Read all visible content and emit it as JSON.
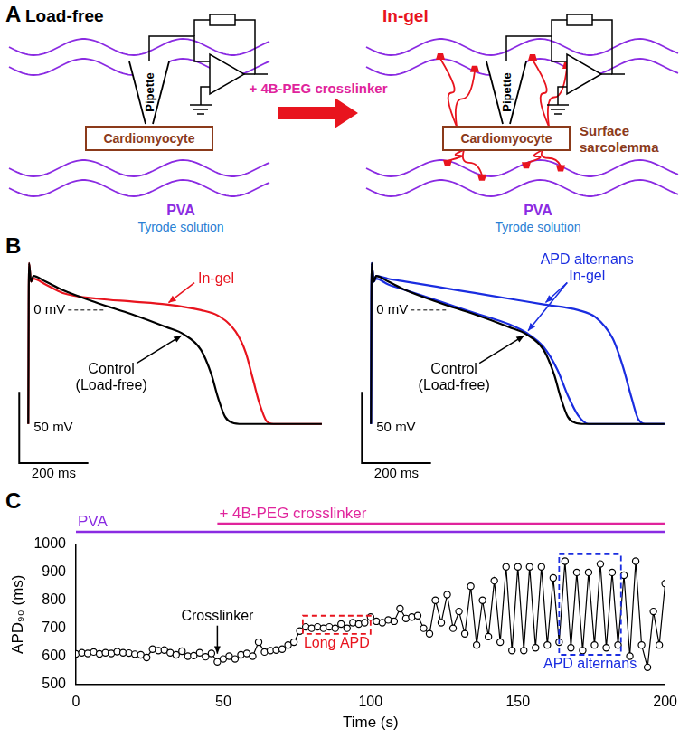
{
  "panel_labels": [
    "A",
    "B",
    "C"
  ],
  "diagram": {
    "left": {
      "title": "Load-free",
      "pipette": "Pipette",
      "cell": "Cardiomyocyte",
      "gel": "PVA",
      "solution": "Tyrode solution"
    },
    "arrow": "+ 4B-PEG crosslinker",
    "right": {
      "title": "In-gel",
      "pipette": "Pipette",
      "cell": "Cardiomyocyte",
      "gel": "PVA",
      "solution": "Tyrode solution",
      "membrane": "Surface sarcolemma"
    }
  },
  "chart_data": [
    {
      "type": "line",
      "tick_labels": false,
      "grid": false,
      "xlim": [
        -40,
        900
      ],
      "ylim": [
        -110,
        45
      ],
      "reference_lines": [
        {
          "y": 0,
          "label": "0 mV"
        }
      ],
      "scale_bars": {
        "x": 200,
        "x_label": "200 ms",
        "y": 50,
        "y_label": "50 mV"
      },
      "series": [
        {
          "name": "Control (Load-free)",
          "color": "#000000",
          "x": [
            0,
            2,
            8,
            15,
            50,
            100,
            200,
            300,
            400,
            450,
            500,
            530,
            550,
            570,
            590,
            620,
            850
          ],
          "values": [
            -80,
            33,
            20,
            24,
            20,
            14,
            5,
            -3,
            -12,
            -17,
            -28,
            -45,
            -62,
            -75,
            -79,
            -80,
            -80
          ]
        },
        {
          "name": "In-gel",
          "color": "#e8141e",
          "x": [
            0,
            2,
            8,
            15,
            50,
            100,
            200,
            300,
            400,
            500,
            550,
            600,
            630,
            650,
            670,
            690,
            710,
            850
          ],
          "values": [
            -80,
            33,
            20,
            22,
            18,
            12,
            8,
            6,
            4,
            0,
            -4,
            -15,
            -30,
            -48,
            -66,
            -78,
            -80,
            -80
          ]
        }
      ]
    },
    {
      "type": "line",
      "tick_labels": false,
      "grid": false,
      "xlim": [
        -40,
        900
      ],
      "ylim": [
        -110,
        45
      ],
      "reference_lines": [
        {
          "y": 0,
          "label": "0 mV"
        }
      ],
      "scale_bars": {
        "x": 200,
        "x_label": "200 ms",
        "y": 50,
        "y_label": "50 mV"
      },
      "annotations": [
        {
          "text": "APD alternans"
        }
      ],
      "series": [
        {
          "name": "Control (Load-free)",
          "color": "#000000",
          "x": [
            0,
            2,
            8,
            15,
            50,
            100,
            200,
            300,
            400,
            450,
            500,
            530,
            550,
            570,
            590,
            620,
            850
          ],
          "values": [
            -80,
            33,
            20,
            24,
            20,
            14,
            5,
            -3,
            -12,
            -17,
            -28,
            -45,
            -62,
            -75,
            -79,
            -80,
            -80
          ]
        },
        {
          "name": "In-gel",
          "color": "#1a2de0",
          "x": [
            0,
            2,
            8,
            15,
            50,
            100,
            200,
            300,
            400,
            450,
            500,
            540,
            570,
            600,
            630,
            850
          ],
          "values": [
            -80,
            33,
            20,
            22,
            18,
            14,
            6,
            -2,
            -10,
            -16,
            -26,
            -42,
            -60,
            -74,
            -80,
            -80
          ]
        },
        {
          "name": "In-gel",
          "color": "#1a2de0",
          "x": [
            0,
            2,
            8,
            15,
            50,
            100,
            200,
            300,
            400,
            500,
            600,
            650,
            700,
            730,
            755,
            775,
            800,
            850
          ],
          "values": [
            -80,
            33,
            20,
            24,
            22,
            20,
            16,
            12,
            8,
            4,
            0,
            -5,
            -20,
            -40,
            -62,
            -77,
            -80,
            -80
          ]
        }
      ]
    },
    {
      "type": "line",
      "marker": "circle",
      "color": "#000000",
      "grid": false,
      "x_label": "Time (s)",
      "y_label": "APD₉₀ (ms)",
      "xlim": [
        0,
        200
      ],
      "xticks": [
        0,
        50,
        100,
        150,
        200
      ],
      "ylim": [
        500,
        1000
      ],
      "yticks": [
        500,
        600,
        700,
        800,
        900,
        1000
      ],
      "periods": [
        {
          "text": "PVA",
          "x": [
            0,
            200
          ],
          "color": "#8a2be2"
        },
        {
          "text": "+ 4B-PEG crosslinker",
          "x": [
            48,
            200
          ],
          "color": "#e0249c"
        }
      ],
      "annotations": [
        {
          "text": "Crosslinker",
          "x": 48,
          "y": 580
        }
      ],
      "boxes": [
        {
          "text": "Long APD",
          "x": [
            77,
            100
          ],
          "y": [
            680,
            745
          ],
          "color": "#e8141e"
        },
        {
          "text": "APD alternans",
          "x": [
            164,
            185
          ],
          "y": [
            605,
            965
          ],
          "color": "#1a2de0"
        }
      ],
      "x": [
        0,
        2,
        4,
        6,
        8,
        10,
        12,
        14,
        16,
        18,
        20,
        22,
        24,
        26,
        28,
        30,
        32,
        34,
        36,
        38,
        40,
        42,
        44,
        46,
        48,
        50,
        52,
        54,
        56,
        58,
        60,
        62,
        64,
        66,
        68,
        70,
        72,
        74,
        76,
        78,
        80,
        82,
        84,
        86,
        88,
        90,
        92,
        94,
        96,
        98,
        100,
        102,
        104,
        106,
        108,
        110,
        112,
        114,
        116,
        118,
        120,
        122,
        124,
        126,
        128,
        130,
        132,
        134,
        136,
        138,
        140,
        142,
        144,
        146,
        148,
        150,
        152,
        154,
        156,
        158,
        160,
        162,
        164,
        166,
        168,
        170,
        172,
        174,
        176,
        178,
        180,
        182,
        184,
        186,
        188,
        190,
        192,
        194,
        196,
        198,
        200
      ],
      "values": [
        608,
        612,
        610,
        615,
        608,
        612,
        610,
        616,
        612,
        611,
        607,
        605,
        595,
        625,
        620,
        622,
        612,
        605,
        618,
        600,
        602,
        612,
        598,
        610,
        580,
        590,
        600,
        590,
        605,
        610,
        600,
        650,
        615,
        620,
        622,
        625,
        640,
        650,
        690,
        705,
        700,
        705,
        700,
        705,
        700,
        715,
        700,
        720,
        715,
        720,
        740,
        725,
        720,
        730,
        725,
        770,
        735,
        740,
        745,
        700,
        680,
        800,
        720,
        820,
        700,
        760,
        680,
        850,
        640,
        800,
        670,
        870,
        650,
        920,
        620,
        920,
        620,
        920,
        630,
        920,
        640,
        880,
        650,
        940,
        630,
        900,
        620,
        900,
        640,
        930,
        630,
        900,
        640,
        890,
        600,
        940,
        640,
        560,
        760,
        640,
        860
      ]
    }
  ]
}
